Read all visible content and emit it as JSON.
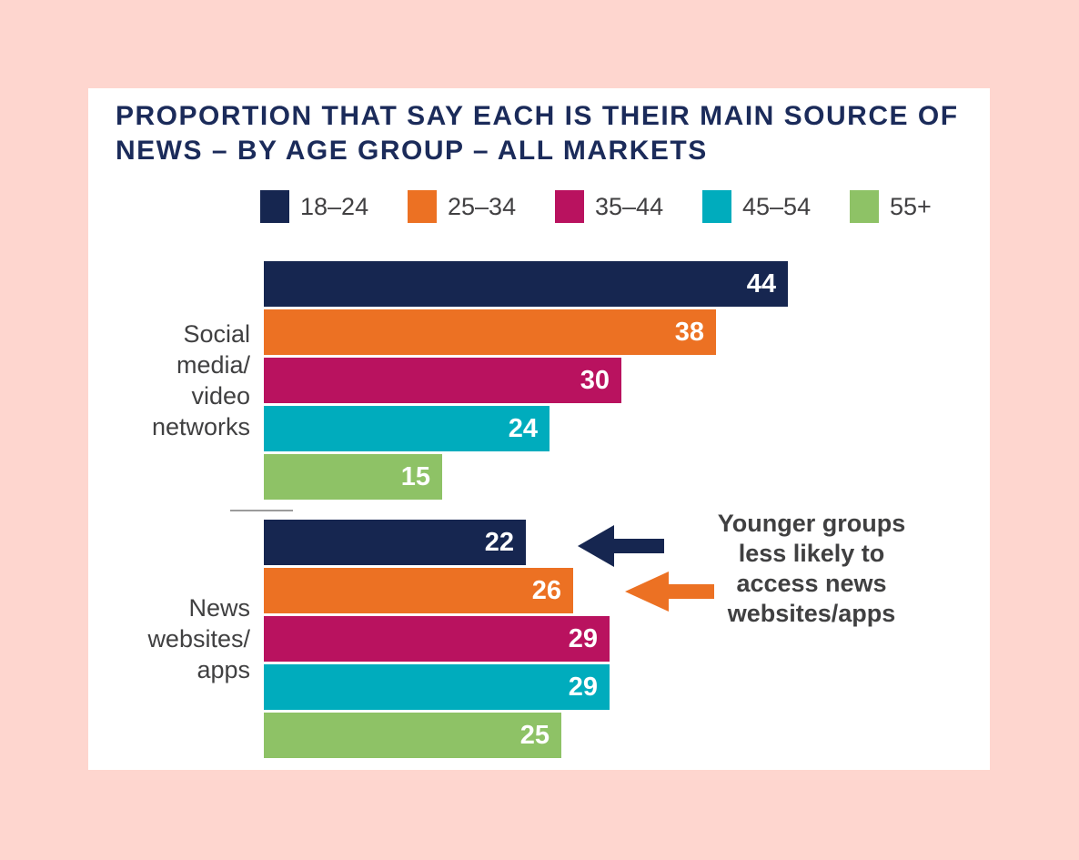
{
  "page": {
    "background_color": "#fed6cf",
    "card_color": "#ffffff",
    "separator_color": "#9b9b9b"
  },
  "chart_data": {
    "type": "bar",
    "orientation": "horizontal",
    "title": "PROPORTION THAT SAY EACH IS THEIR MAIN SOURCE OF NEWS – BY AGE GROUP – ALL MARKETS",
    "title_lines": [
      "PROPORTION THAT SAY EACH IS THEIR MAIN SOURCE OF",
      "NEWS – BY AGE GROUP – ALL MARKETS"
    ],
    "title_color": "#1b2b5a",
    "unit": "percent",
    "xlim": [
      0,
      44
    ],
    "grid": false,
    "legend_position": "top",
    "value_labels": "inside-end",
    "categories": [
      "Social media/ video networks",
      "News websites/ apps"
    ],
    "category_label_lines": [
      [
        "Social",
        "media/",
        "video",
        "networks"
      ],
      [
        "News",
        "websites/",
        "apps"
      ]
    ],
    "series": [
      {
        "name": "18–24",
        "color": "#162650",
        "values": [
          44,
          22
        ]
      },
      {
        "name": "25–34",
        "color": "#ec7123",
        "values": [
          38,
          26
        ]
      },
      {
        "name": "35–44",
        "color": "#b9125f",
        "values": [
          30,
          29
        ]
      },
      {
        "name": "45–54",
        "color": "#00acbd",
        "values": [
          24,
          29
        ]
      },
      {
        "name": "55+",
        "color": "#8ec266",
        "values": [
          15,
          25
        ]
      }
    ],
    "annotation": {
      "text": "Younger groups less likely to access news websites/apps",
      "lines": [
        "Younger groups",
        "less likely to",
        "access news",
        "websites/apps"
      ],
      "arrow_colors": [
        "#162650",
        "#ec7123"
      ]
    }
  }
}
